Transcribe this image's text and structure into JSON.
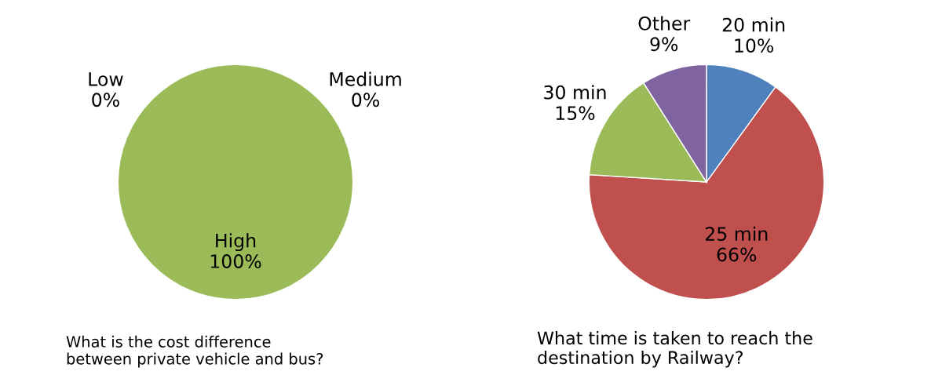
{
  "chart_data": [
    {
      "type": "pie",
      "title": "What is the cost difference\nbetween private vehicle and bus?",
      "categories": [
        "Low",
        "Medium",
        "High"
      ],
      "values": [
        0,
        0,
        100
      ],
      "colors": [
        "#4f81bd",
        "#c0504d",
        "#9bbb59"
      ],
      "value_labels": [
        "0%",
        "0%",
        "100%"
      ]
    },
    {
      "type": "pie",
      "title": "What time is taken to reach the\ndestination by Railway?",
      "categories": [
        "20 min",
        "25 min",
        "30 min",
        "Other"
      ],
      "values": [
        10,
        66,
        15,
        9
      ],
      "colors": [
        "#4f81bd",
        "#c0504d",
        "#9bbb59",
        "#8064a2"
      ],
      "value_labels": [
        "10%",
        "66%",
        "15%",
        "9%"
      ]
    }
  ]
}
